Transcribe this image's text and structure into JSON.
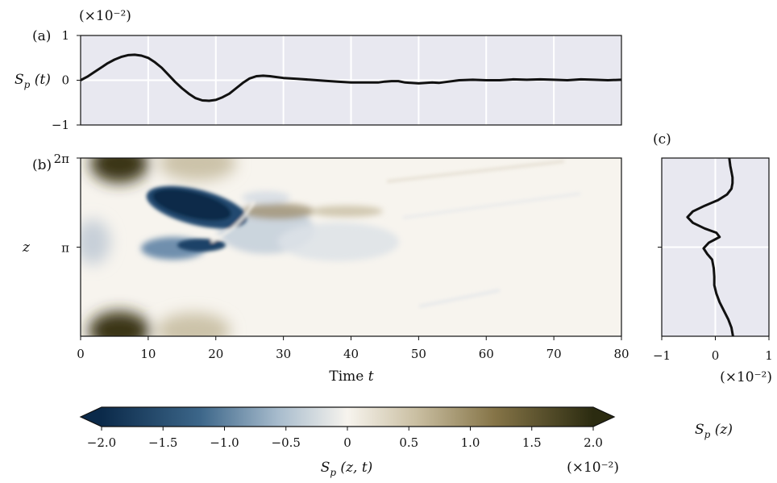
{
  "chart_data": [
    {
      "panel": "(a)",
      "type": "line",
      "y_label": "S_p (t)",
      "scale_note": "(×10⁻²)",
      "xlim": [
        0,
        80
      ],
      "ylim": [
        -1,
        1
      ],
      "y_ticks": [
        1,
        0,
        -1
      ],
      "y_tick_labels": [
        "1",
        "0",
        "−1"
      ],
      "x_gridlines": [
        10,
        20,
        30,
        40,
        50,
        60,
        70
      ],
      "grid": true,
      "x": [
        0,
        1,
        2,
        3,
        4,
        5,
        6,
        7,
        8,
        9,
        10,
        11,
        12,
        13,
        14,
        15,
        16,
        17,
        18,
        19,
        20,
        21,
        22,
        23,
        24,
        25,
        26,
        27,
        28,
        29,
        30,
        32,
        34,
        36,
        38,
        40,
        42,
        44,
        45,
        46,
        47,
        48,
        50,
        52,
        53,
        54,
        56,
        58,
        60,
        62,
        64,
        66,
        68,
        70,
        72,
        74,
        76,
        78,
        80
      ],
      "y": [
        0,
        0.08,
        0.18,
        0.28,
        0.38,
        0.46,
        0.52,
        0.56,
        0.57,
        0.55,
        0.5,
        0.4,
        0.28,
        0.12,
        -0.04,
        -0.18,
        -0.3,
        -0.4,
        -0.45,
        -0.46,
        -0.44,
        -0.38,
        -0.3,
        -0.18,
        -0.06,
        0.04,
        0.09,
        0.1,
        0.09,
        0.07,
        0.05,
        0.03,
        0.01,
        -0.01,
        -0.03,
        -0.05,
        -0.05,
        -0.05,
        -0.03,
        -0.02,
        -0.02,
        -0.05,
        -0.07,
        -0.05,
        -0.06,
        -0.04,
        0.0,
        0.01,
        0.0,
        0.0,
        0.02,
        0.01,
        0.02,
        0.01,
        0.0,
        0.02,
        0.01,
        0.0,
        0.01
      ]
    },
    {
      "panel": "(b)",
      "type": "heatmap",
      "x_label": "Time t",
      "y_label": "z",
      "xlim": [
        0,
        80
      ],
      "x_ticks": [
        0,
        10,
        20,
        30,
        40,
        50,
        60,
        70,
        80
      ],
      "x_tick_labels": [
        "0",
        "10",
        "20",
        "30",
        "40",
        "50",
        "60",
        "70",
        "80"
      ],
      "ylim": [
        0,
        6.2832
      ],
      "y_ticks": [
        6.2832,
        3.1416
      ],
      "y_tick_labels": [
        "2π",
        "π"
      ],
      "colorbar": {
        "label": "S_p (z, t)",
        "scale_note": "(×10⁻²)",
        "range": [
          -2.0,
          2.0
        ],
        "ticks": [
          -2.0,
          -1.5,
          -1.0,
          -0.5,
          0,
          0.5,
          1.0,
          1.5,
          2.0
        ],
        "tick_labels": [
          "−2.0",
          "−1.5",
          "−1.0",
          "−0.5",
          "0",
          "0.5",
          "1.0",
          "1.5",
          "2.0"
        ],
        "extend": "both",
        "colors": {
          "negative_end": "#0b2a4a",
          "center": "#f7f4ee",
          "positive_end": "#2b2b10"
        }
      }
    },
    {
      "panel": "(c)",
      "type": "line",
      "x_label": "S_p (z)",
      "scale_note": "(×10⁻²)",
      "xlim": [
        -1,
        1
      ],
      "x_ticks": [
        -1,
        0,
        1
      ],
      "x_tick_labels": [
        "−1",
        "0",
        "1"
      ],
      "ylim": [
        0,
        6.2832
      ],
      "grid": true,
      "z": [
        0,
        0.3,
        0.6,
        0.9,
        1.2,
        1.5,
        1.8,
        2.1,
        2.4,
        2.7,
        2.9,
        3.1,
        3.3,
        3.5,
        3.65,
        3.8,
        4.0,
        4.2,
        4.4,
        4.6,
        4.8,
        5.0,
        5.2,
        5.4,
        5.6,
        5.8,
        6.0,
        6.2832
      ],
      "s": [
        0.33,
        0.3,
        0.24,
        0.16,
        0.08,
        0.02,
        -0.02,
        -0.02,
        -0.03,
        -0.06,
        -0.15,
        -0.22,
        -0.12,
        0.08,
        0.02,
        -0.2,
        -0.42,
        -0.52,
        -0.42,
        -0.2,
        0.05,
        0.22,
        0.3,
        0.32,
        0.32,
        0.3,
        0.28,
        0.26
      ]
    }
  ],
  "panel_labels": {
    "a": "(a)",
    "b": "(b)",
    "c": "(c)"
  }
}
